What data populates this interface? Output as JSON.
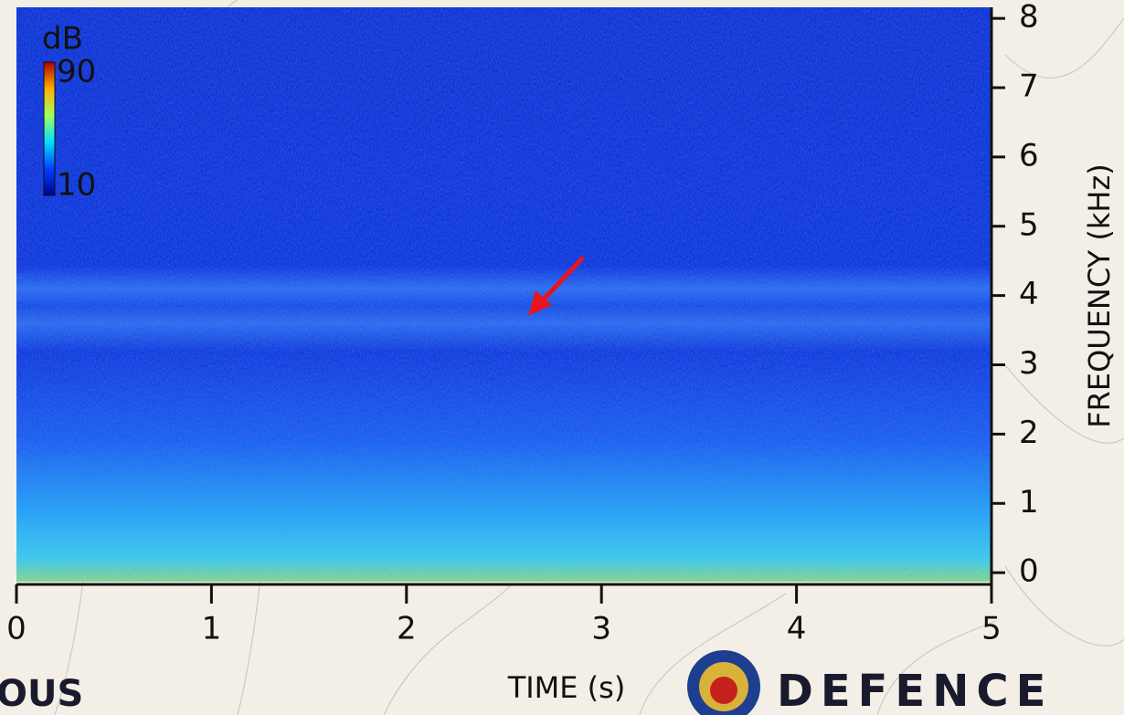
{
  "chart_data": {
    "type": "spectrogram",
    "xlabel": "TIME (s)",
    "ylabel": "FREQUENCY (kHz)",
    "xlim": [
      0,
      5
    ],
    "ylim": [
      -0.13,
      8.16
    ],
    "xticks": [
      0,
      1,
      2,
      3,
      4,
      5
    ],
    "yticks": [
      0,
      1,
      2,
      3,
      4,
      5,
      6,
      7,
      8
    ],
    "colorbar": {
      "title": "dB",
      "lim": [
        10,
        90
      ],
      "ticks": [
        10,
        90
      ]
    }
  },
  "footer": {
    "left_text": "OUS",
    "logo_text": "DEFENCE"
  }
}
